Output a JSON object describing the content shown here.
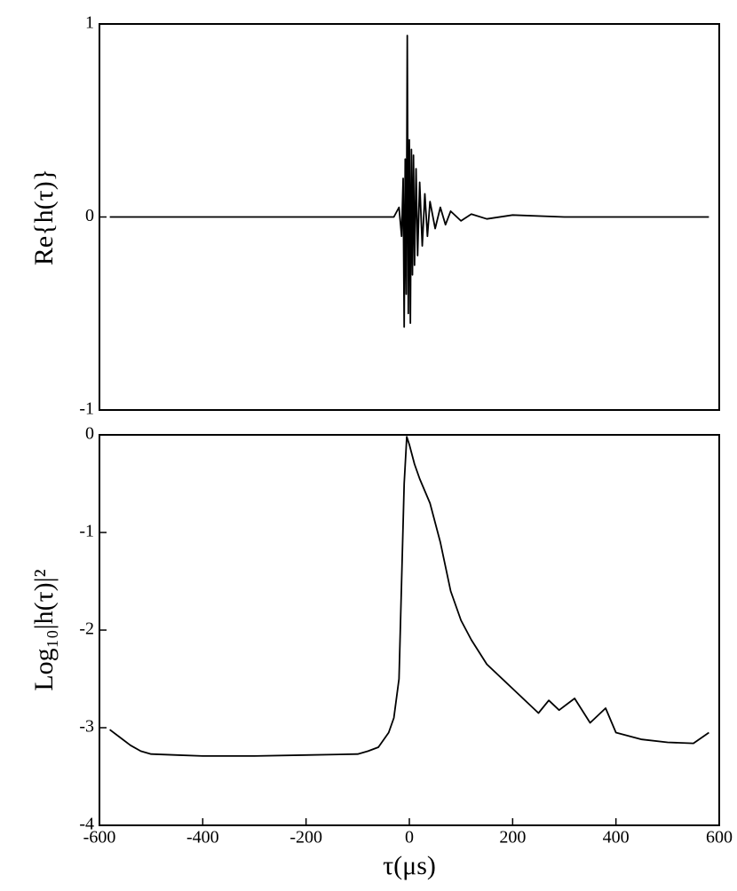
{
  "chart_data": [
    {
      "type": "line",
      "ylabel": "Re{h(τ)}",
      "xlim": [
        -600,
        600
      ],
      "ylim": [
        -1,
        1
      ],
      "yticks": [
        -1,
        0,
        1
      ],
      "x": [
        -580,
        -500,
        -400,
        -300,
        -200,
        -100,
        -30,
        -20,
        -15,
        -12,
        -10,
        -8,
        -6,
        -4,
        -2,
        0,
        2,
        4,
        6,
        8,
        10,
        13,
        16,
        20,
        25,
        30,
        35,
        40,
        50,
        60,
        70,
        80,
        100,
        120,
        150,
        200,
        300,
        400,
        500,
        580
      ],
      "color": "#000000",
      "values": [
        0,
        0,
        0,
        0,
        0,
        0,
        0,
        0.05,
        -0.1,
        0.2,
        -0.57,
        0.3,
        -0.4,
        0.94,
        -0.5,
        0.4,
        -0.55,
        0.35,
        -0.3,
        0.32,
        -0.25,
        0.25,
        -0.2,
        0.18,
        -0.15,
        0.12,
        -0.1,
        0.08,
        -0.06,
        0.05,
        -0.04,
        0.03,
        -0.02,
        0.015,
        -0.01,
        0.01,
        0,
        0,
        0,
        0
      ]
    },
    {
      "type": "line",
      "ylabel": "Log₁₀|h(τ)|²",
      "xlabel": "τ(μs)",
      "xlim": [
        -600,
        600
      ],
      "ylim": [
        -4,
        0
      ],
      "yticks": [
        -4,
        -3,
        -2,
        -1,
        0
      ],
      "xticks": [
        -600,
        -400,
        -200,
        0,
        200,
        400,
        600
      ],
      "x": [
        -580,
        -560,
        -540,
        -520,
        -500,
        -450,
        -400,
        -300,
        -200,
        -100,
        -80,
        -60,
        -40,
        -30,
        -20,
        -15,
        -10,
        -5,
        0,
        10,
        20,
        40,
        60,
        80,
        100,
        120,
        150,
        200,
        250,
        270,
        290,
        320,
        350,
        380,
        400,
        450,
        500,
        550,
        580
      ],
      "color": "#000000",
      "values": [
        -3.02,
        -3.1,
        -3.18,
        -3.24,
        -3.27,
        -3.28,
        -3.29,
        -3.29,
        -3.28,
        -3.27,
        -3.24,
        -3.2,
        -3.05,
        -2.9,
        -2.5,
        -1.5,
        -0.5,
        -0.02,
        -0.1,
        -0.3,
        -0.45,
        -0.7,
        -1.1,
        -1.6,
        -1.9,
        -2.1,
        -2.35,
        -2.6,
        -2.85,
        -2.72,
        -2.82,
        -2.7,
        -2.95,
        -2.8,
        -3.05,
        -3.12,
        -3.15,
        -3.16,
        -3.05
      ]
    }
  ]
}
